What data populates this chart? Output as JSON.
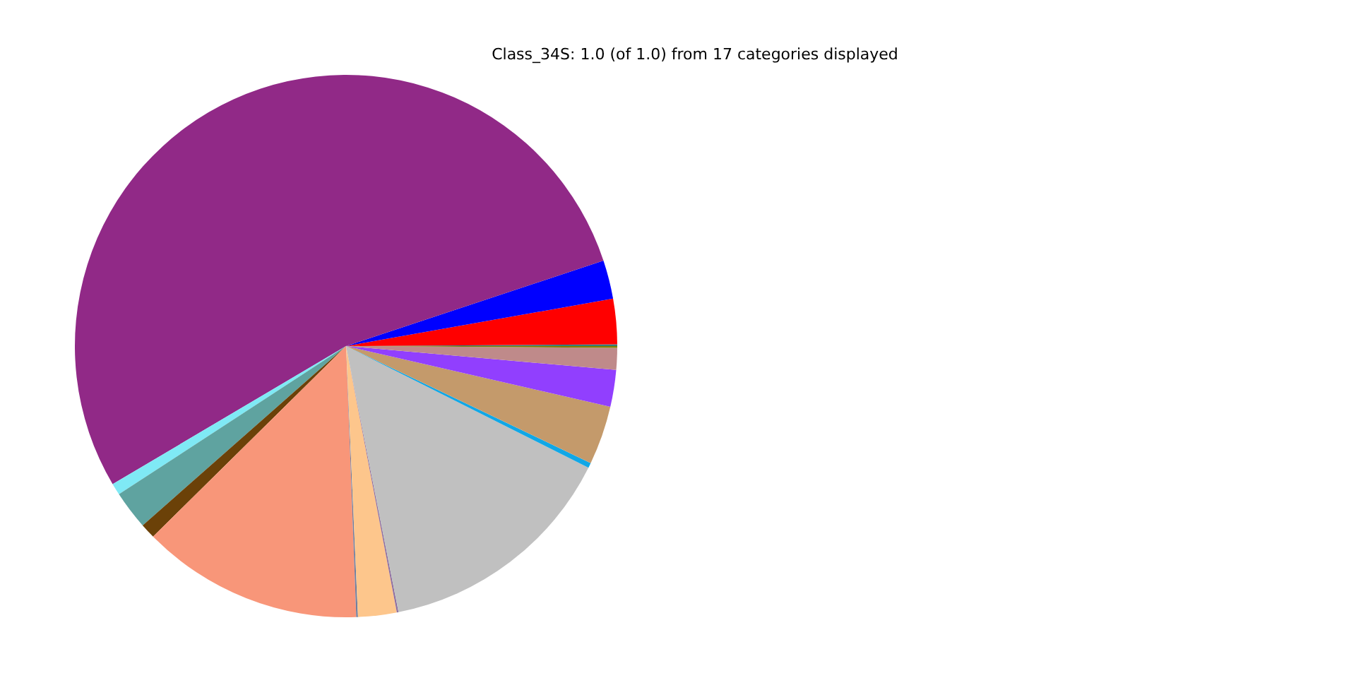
{
  "chart_data": {
    "type": "pie",
    "title": "Class_34S: 1.0 (of 1.0) from 17 categories displayed",
    "categories": [
      null,
      null,
      null,
      null,
      null,
      null,
      null,
      null,
      null,
      null,
      null,
      null,
      null,
      null,
      null,
      null,
      null
    ],
    "values": [
      0.1,
      2.7,
      2.3,
      53.4,
      0.7,
      2.3,
      0.9,
      13.2,
      0.1,
      2.3,
      0.1,
      14.5,
      0.3,
      3.5,
      2.2,
      1.3,
      0.1
    ],
    "colors": [
      "#2f7f7f",
      "#ff0000",
      "#0000ff",
      "#912987",
      "#7fe9f5",
      "#5fa3a0",
      "#6b4108",
      "#f89679",
      "#6f7f9f",
      "#fdc68c",
      "#8f6fa0",
      "#c0c0c0",
      "#11a7e6",
      "#c49a6b",
      "#913ffe",
      "#bf8a8a",
      "#808000"
    ],
    "legend": false
  }
}
